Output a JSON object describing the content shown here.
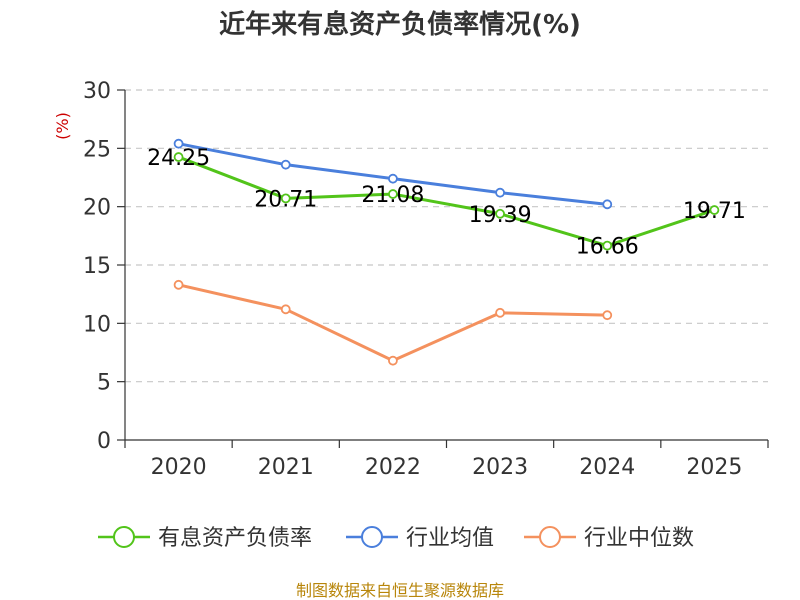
{
  "chart_data": {
    "type": "line",
    "title": "近年来有息资产负债率情况(%)",
    "ylabel": "(%)",
    "xlabel": "",
    "categories": [
      "2020",
      "2021",
      "2022",
      "2023",
      "2024",
      "2025"
    ],
    "ylim": [
      0,
      30
    ],
    "yticks": [
      0,
      5,
      10,
      15,
      20,
      25,
      30
    ],
    "grid": true,
    "legend_position": "bottom",
    "series": [
      {
        "name": "有息资产负债率",
        "color": "#52c41a",
        "values": [
          24.25,
          20.71,
          21.08,
          19.39,
          16.66,
          19.71
        ],
        "labels": [
          "24.25",
          "20.71",
          "21.08",
          "19.39",
          "16.66",
          "19.71"
        ]
      },
      {
        "name": "行业均值",
        "color": "#4a7fdc",
        "values": [
          25.4,
          23.6,
          22.4,
          21.2,
          20.2,
          null
        ]
      },
      {
        "name": "行业中位数",
        "color": "#f4915e",
        "values": [
          13.3,
          11.2,
          6.8,
          10.9,
          10.7,
          null
        ]
      }
    ],
    "source": "制图数据来自恒生聚源数据库",
    "ylabel_color": "#cc0000",
    "source_color": "#b8860b"
  }
}
